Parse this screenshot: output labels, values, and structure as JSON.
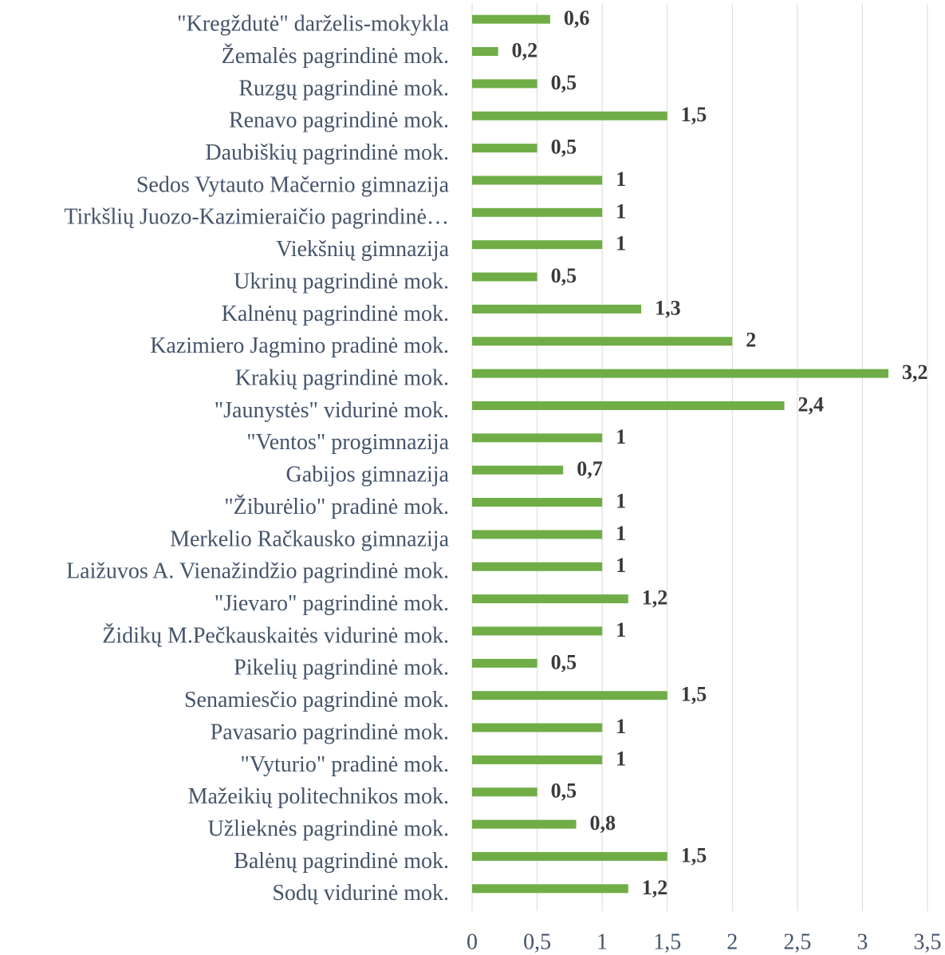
{
  "chart_data": {
    "type": "bar",
    "orientation": "horizontal",
    "categories": [
      "\"Kregždutė\" darželis-mokykla",
      "Žemalės pagrindinė mok.",
      "Ruzgų pagrindinė mok.",
      "Renavo pagrindinė mok.",
      "Daubiškių pagrindinė mok.",
      "Sedos Vytauto Mačernio gimnazija",
      "Tirkšlių Juozo-Kazimieraičio pagrindinė…",
      "Viekšnių gimnazija",
      "Ukrinų pagrindinė mok.",
      "Kalnėnų pagrindinė mok.",
      "Kazimiero Jagmino pradinė mok.",
      "Krakių pagrindinė mok.",
      "\"Jaunystės\" vidurinė mok.",
      "\"Ventos\" progimnazija",
      "Gabijos gimnazija",
      "\"Žiburėlio\" pradinė mok.",
      "Merkelio Račkausko gimnazija",
      "Laižuvos A. Vienažindžio pagrindinė mok.",
      "\"Jievaro\" pagrindinė mok.",
      "Židikų M.Pečkauskaitės  vidurinė mok.",
      "Pikelių pagrindinė mok.",
      "Senamiesčio pagrindinė mok.",
      "Pavasario pagrindinė mok.",
      "\"Vyturio\" pradinė mok.",
      "Mažeikių politechnikos mok.",
      "Užlieknės pagrindinė mok.",
      "Balėnų pagrindinė mok.",
      "Sodų vidurinė mok."
    ],
    "values": [
      0.6,
      0.2,
      0.5,
      1.5,
      0.5,
      1,
      1,
      1,
      0.5,
      1.3,
      2,
      3.2,
      2.4,
      1,
      0.7,
      1,
      1,
      1,
      1.2,
      1,
      0.5,
      1.5,
      1,
      1,
      0.5,
      0.8,
      1.5,
      1.2
    ],
    "value_labels": [
      "0,6",
      "0,2",
      "0,5",
      "1,5",
      "0,5",
      "1",
      "1",
      "1",
      "0,5",
      "1,3",
      "2",
      "3,2",
      "2,4",
      "1",
      "0,7",
      "1",
      "1",
      "1",
      "1,2",
      "1",
      "0,5",
      "1,5",
      "1",
      "1",
      "0,5",
      "0,8",
      "1,5",
      "1,2"
    ],
    "color": "#70ad47",
    "xlim": [
      0,
      3.5
    ],
    "xticks": [
      0,
      {
        "value": 0.5,
        "label": "0,5"
      },
      1,
      {
        "value": 1.5,
        "label": "1,5"
      },
      2,
      {
        "value": 2.5,
        "label": "2,5"
      },
      3,
      {
        "value": 3.5,
        "label": "3,5"
      }
    ],
    "grid": true
  }
}
